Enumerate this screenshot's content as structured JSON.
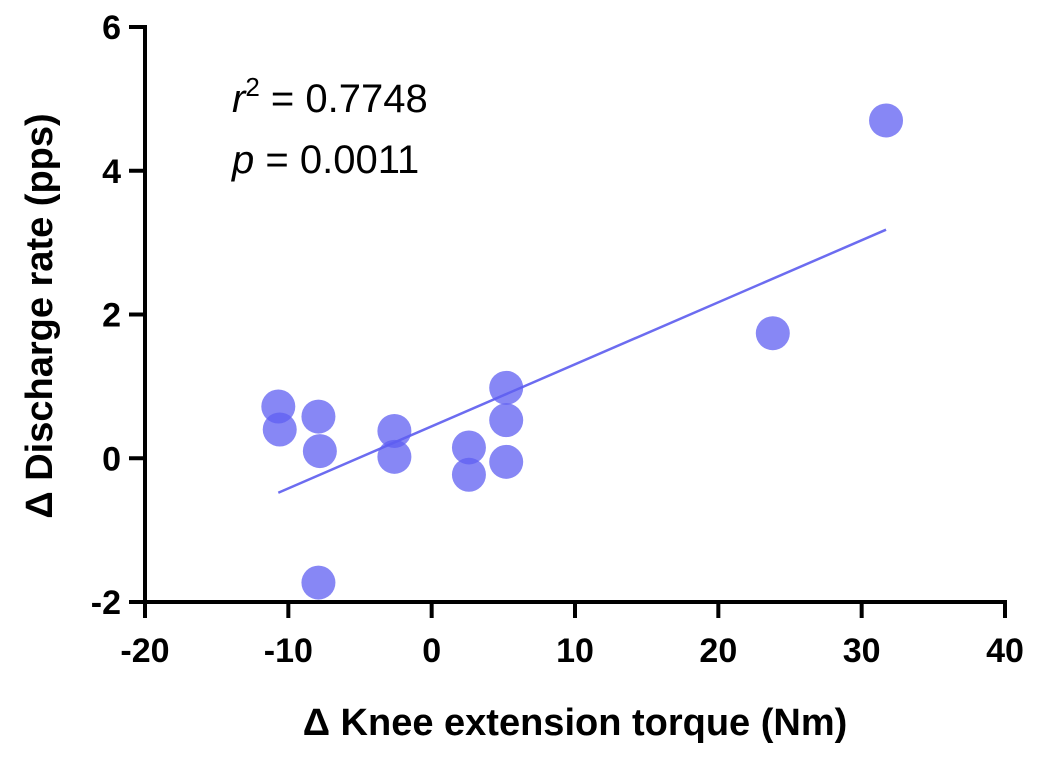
{
  "chart_data": {
    "type": "scatter",
    "title": "",
    "xlabel": "Δ Knee extension torque (Nm)",
    "ylabel": "Δ Discharge rate (pps)",
    "xlim": [
      -20,
      40
    ],
    "ylim": [
      -2,
      6
    ],
    "xticks": [
      -20,
      -10,
      0,
      10,
      20,
      30,
      40
    ],
    "yticks": [
      -2,
      0,
      2,
      4,
      6
    ],
    "grid": false,
    "legend": "none",
    "series": [
      {
        "points": [
          {
            "x": -10.7,
            "y": 0.72
          },
          {
            "x": -10.6,
            "y": 0.4
          },
          {
            "x": -7.9,
            "y": 0.58
          },
          {
            "x": -7.8,
            "y": 0.1
          },
          {
            "x": -7.9,
            "y": -1.73
          },
          {
            "x": -2.6,
            "y": 0.38
          },
          {
            "x": -2.6,
            "y": 0.02
          },
          {
            "x": 2.6,
            "y": 0.15
          },
          {
            "x": 2.6,
            "y": -0.23
          },
          {
            "x": 5.2,
            "y": 0.98
          },
          {
            "x": 5.2,
            "y": 0.53
          },
          {
            "x": 5.2,
            "y": -0.05
          },
          {
            "x": 23.8,
            "y": 1.74
          },
          {
            "x": 31.7,
            "y": 4.7
          }
        ]
      }
    ],
    "fit_line": {
      "x": [
        -10.7,
        31.7
      ],
      "y": [
        -0.48,
        3.18
      ]
    },
    "annotations": {
      "r2_symbol": "r",
      "r2_exponent": "2",
      "r2_value": " = 0.7748",
      "p_symbol": "p",
      "p_value": " = 0.0011"
    },
    "colors": {
      "marker": "#5f5ff2",
      "fit_line": "#6c6cf0",
      "axis": "#000000"
    }
  }
}
